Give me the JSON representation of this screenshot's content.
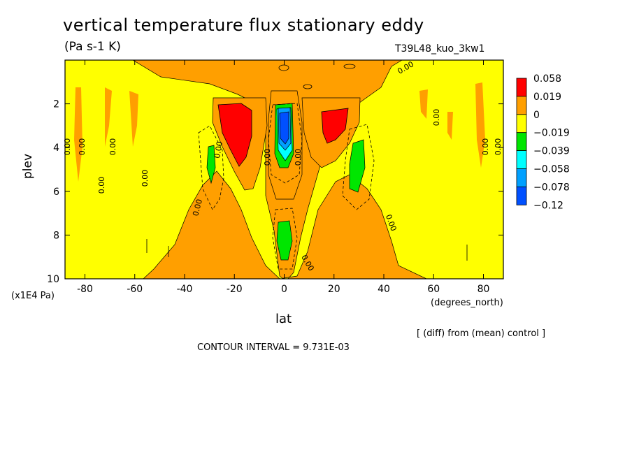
{
  "chart_data": {
    "type": "heatmap",
    "title": "vertical temperature flux stationary eddy",
    "units": "(Pa s-1 K)",
    "run_id": "T39L48_kuo_3kw1",
    "xlabel": "lat",
    "ylabel": "plev",
    "x_units": "(degrees_north)",
    "y_units": "(x1E4 Pa)",
    "xlim": [
      -88,
      88
    ],
    "ylim": [
      10,
      0
    ],
    "x_ticks": [
      "-80",
      "-60",
      "-40",
      "-20",
      "0",
      "20",
      "40",
      "60",
      "80"
    ],
    "x_tick_values": [
      -80,
      -60,
      -40,
      -20,
      0,
      20,
      40,
      60,
      80
    ],
    "y_ticks": [
      "2",
      "4",
      "6",
      "8",
      "10"
    ],
    "y_tick_values": [
      2,
      4,
      6,
      8,
      10
    ],
    "legend": {
      "placement": "right",
      "labels": [
        "0.058",
        "0.019",
        "0",
        "−0.019",
        "−0.039",
        "−0.058",
        "−0.078",
        "−0.12"
      ],
      "colors": [
        "#ff0000",
        "#ff9f00",
        "#ffff00",
        "#00e600",
        "#00ffff",
        "#00a0ff",
        "#0050ff"
      ]
    },
    "contour_labels": [
      "0.00",
      "0.00",
      "0.00",
      "0.00",
      "0.00",
      "0.00",
      "0.00",
      "0.00",
      "0.00",
      "0.00",
      "0.00",
      "0.00",
      "0.00",
      "0.00",
      "0.00"
    ],
    "regions": [
      {
        "name": "red-south",
        "lat": [
          -26,
          -6
        ],
        "plev": [
          2.0,
          4.8
        ],
        "value": 0.058
      },
      {
        "name": "red-north",
        "lat": [
          15,
          25
        ],
        "plev": [
          2.3,
          4.3
        ],
        "value": 0.058
      },
      {
        "name": "blue-core-upper",
        "lat": [
          -2,
          4
        ],
        "plev": [
          1.9,
          5.0
        ],
        "value": -0.12
      },
      {
        "name": "green-lower-equator",
        "lat": [
          -3,
          4
        ],
        "plev": [
          7.6,
          9.2
        ],
        "value": -0.039
      },
      {
        "name": "green-south",
        "lat": [
          -33,
          -28
        ],
        "plev": [
          3.8,
          5.3
        ],
        "value": -0.039
      },
      {
        "name": "green-north",
        "lat": [
          25,
          33
        ],
        "plev": [
          3.6,
          6.1
        ],
        "value": -0.039
      }
    ]
  },
  "text": {
    "note": "[ (diff) from (mean) control ]",
    "contour_interval": "CONTOUR INTERVAL = 9.731E-03"
  }
}
